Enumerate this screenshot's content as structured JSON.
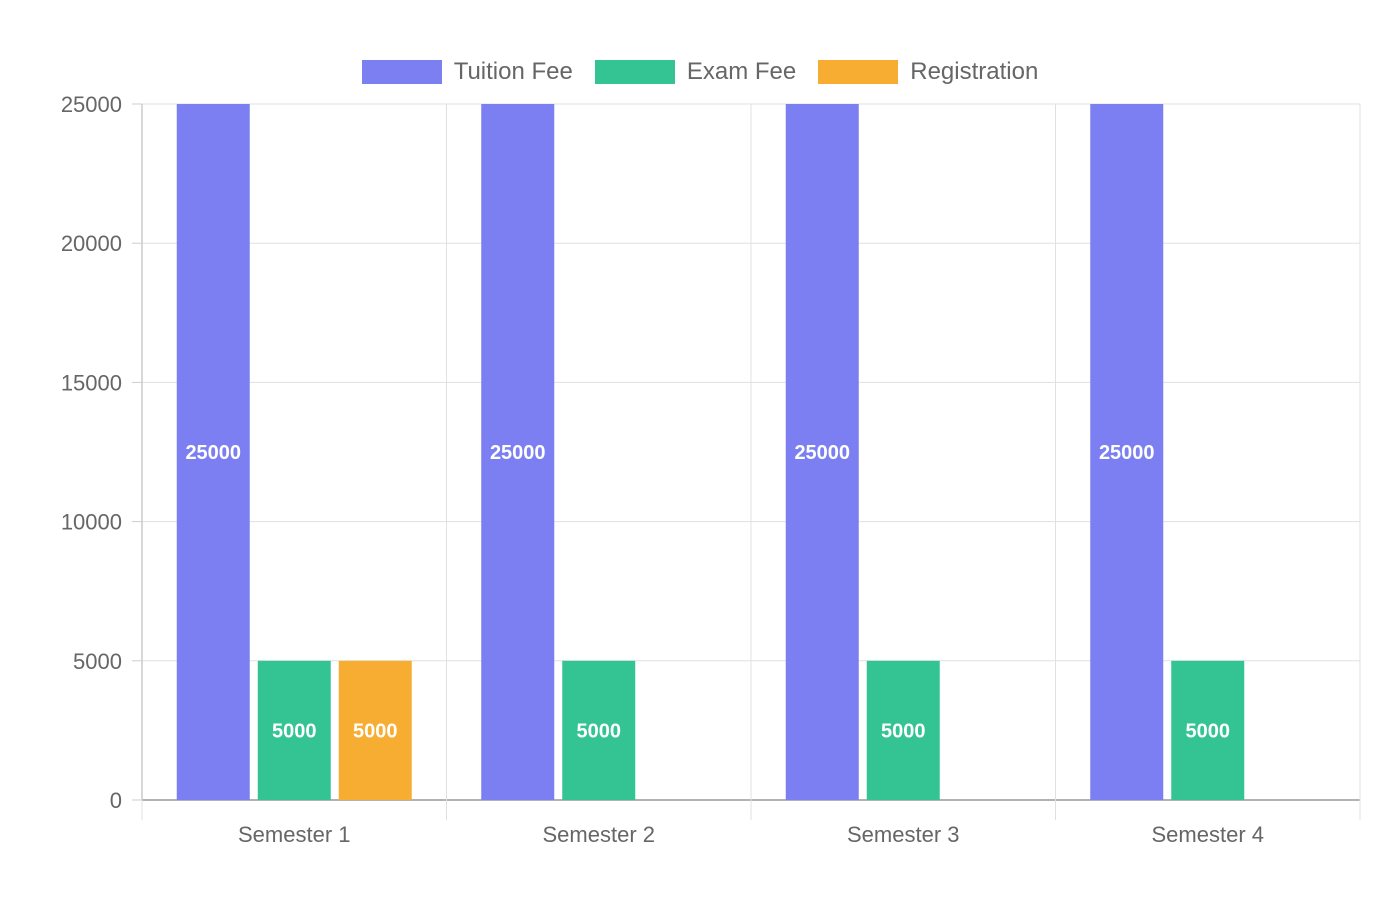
{
  "chart_data": {
    "type": "bar",
    "title": "",
    "xlabel": "",
    "ylabel": "",
    "categories": [
      "Semester 1",
      "Semester 2",
      "Semester 3",
      "Semester 4"
    ],
    "series": [
      {
        "name": "Tuition Fee",
        "color": "#7b7ff2",
        "values": [
          25000,
          25000,
          25000,
          25000
        ]
      },
      {
        "name": "Exam Fee",
        "color": "#34c493",
        "values": [
          5000,
          5000,
          5000,
          5000
        ]
      },
      {
        "name": "Registration",
        "color": "#f7ad31",
        "values": [
          5000,
          0,
          0,
          0
        ]
      }
    ],
    "ylim": [
      0,
      25000
    ],
    "yticks": [
      0,
      5000,
      10000,
      15000,
      20000,
      25000
    ],
    "grid": true,
    "legend_position": "top-center",
    "data_labels": true
  }
}
